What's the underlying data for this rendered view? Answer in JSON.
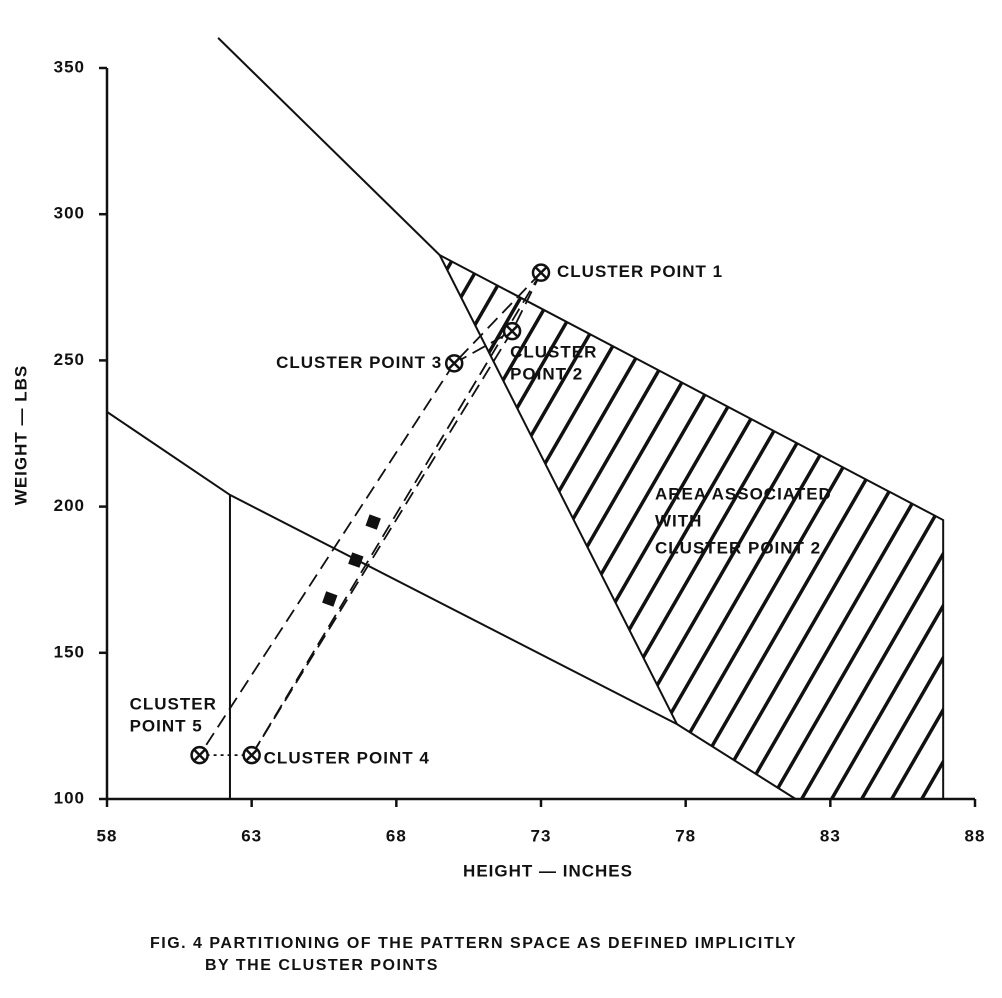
{
  "chart_data": {
    "type": "scatter",
    "xlabel": "HEIGHT — INCHES",
    "ylabel": "WEIGHT — LBS",
    "xlim": [
      58,
      88
    ],
    "ylim": [
      100,
      350
    ],
    "xticks": [
      58,
      63,
      68,
      73,
      78,
      83,
      88
    ],
    "yticks": [
      100,
      150,
      200,
      250,
      300,
      350
    ],
    "x": [
      73,
      72,
      70,
      63,
      61.2
    ],
    "values": [
      280,
      260,
      249,
      115,
      115
    ],
    "point_labels": [
      [
        "CLUSTER POINT 1"
      ],
      [
        "CLUSTER",
        "POINT 2"
      ],
      [
        "CLUSTER POINT 3"
      ],
      [
        "CLUSTER POINT 4"
      ],
      [
        "CLUSTER",
        "POINT 5"
      ]
    ],
    "lines": [
      {
        "x": [
          61.84,
          69.5,
          77.7
        ],
        "y": [
          360.3,
          286,
          125.6
        ]
      },
      {
        "x": [
          69.5,
          86.9,
          86.9
        ],
        "y": [
          286,
          195.4,
          100
        ]
      },
      {
        "x": [
          58,
          62.25,
          77.7,
          81.8
        ],
        "y": [
          232.4,
          204,
          125.6,
          100
        ]
      },
      {
        "x": [
          62.25,
          62.25
        ],
        "y": [
          204,
          100
        ]
      }
    ],
    "dashed_lines": [
      {
        "x": [
          73,
          70
        ],
        "y": [
          280,
          249
        ]
      },
      {
        "x": [
          73,
          72
        ],
        "y": [
          280,
          260
        ]
      },
      {
        "x": [
          70,
          72
        ],
        "y": [
          249,
          260
        ]
      },
      {
        "x": [
          73,
          63
        ],
        "y": [
          280,
          115
        ]
      },
      {
        "x": [
          72,
          63
        ],
        "y": [
          260,
          115
        ]
      },
      {
        "x": [
          70,
          61.2
        ],
        "y": [
          249,
          115
        ]
      },
      {
        "x": [
          61.2,
          63
        ],
        "y": [
          115,
          115
        ]
      }
    ],
    "markers": {
      "x": [
        67.2,
        65.7,
        66.6
      ],
      "y": [
        194.7,
        168.4,
        181.7
      ]
    },
    "shaded_region": {
      "x": [
        69.5,
        86.9,
        86.9,
        81.8,
        77.7
      ],
      "y": [
        286,
        195.4,
        100,
        100,
        125.6
      ]
    },
    "annotation": [
      "AREA ASSOCIATED",
      "WITH",
      "CLUSTER POINT 2"
    ],
    "caption": [
      "FIG. 4  PARTITIONING OF THE PATTERN SPACE AS DEFINED IMPLICITLY",
      "BY THE CLUSTER POINTS"
    ]
  }
}
